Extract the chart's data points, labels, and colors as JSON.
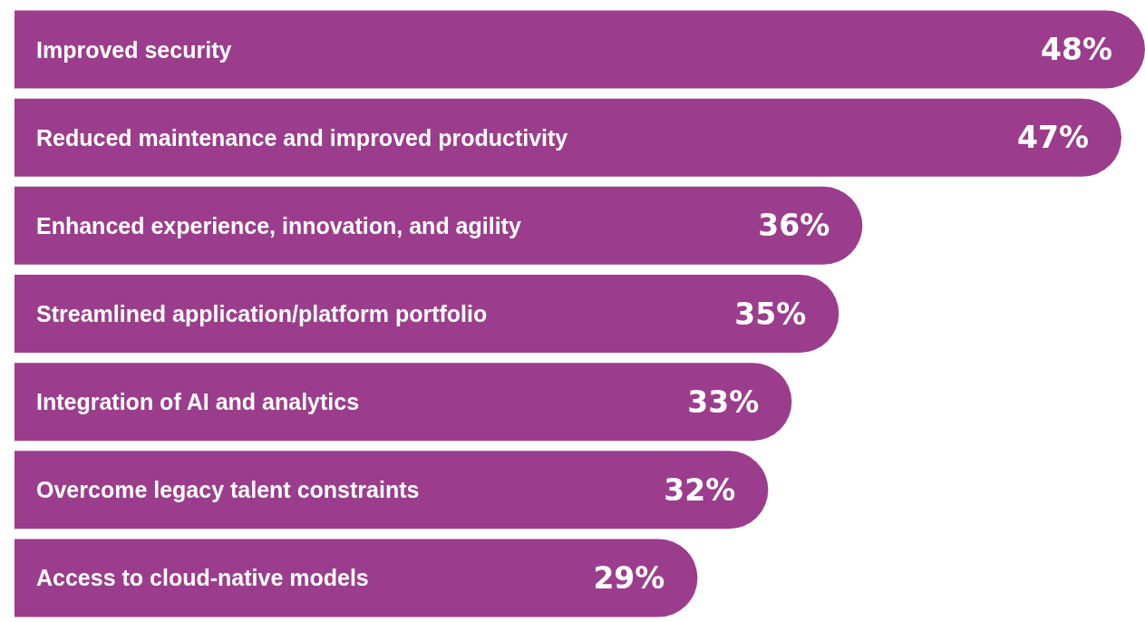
{
  "chart_data": {
    "type": "bar",
    "orientation": "horizontal",
    "categories": [
      "Improved security",
      "Reduced maintenance and improved productivity",
      "Enhanced experience, innovation, and agility",
      "Streamlined application/platform portfolio",
      "Integration of AI and analytics",
      "Overcome legacy talent constraints",
      "Access to cloud-native models"
    ],
    "values": [
      48,
      47,
      36,
      35,
      33,
      32,
      29
    ],
    "value_labels": [
      "48%",
      "47%",
      "36%",
      "35%",
      "33%",
      "32%",
      "29%"
    ],
    "color": "#9b3d8c",
    "xlim": [
      0,
      48
    ]
  }
}
